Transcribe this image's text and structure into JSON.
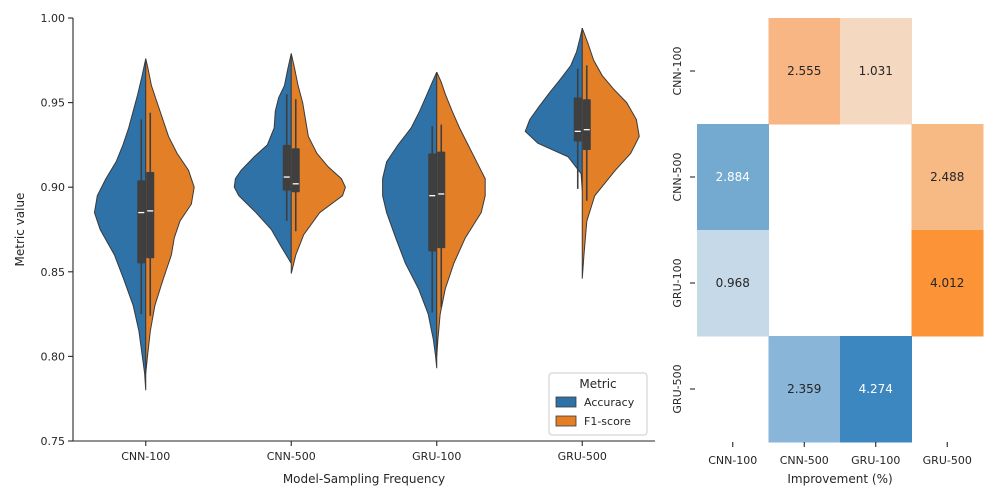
{
  "chart_data": [
    {
      "type": "violin",
      "xlabel": "Model-Sampling Frequency",
      "ylabel": "Metric value",
      "ylim": [
        0.75,
        1.0
      ],
      "yticks": [
        "0.75",
        "0.80",
        "0.85",
        "0.90",
        "0.95",
        "1.00"
      ],
      "categories": [
        "CNN-100",
        "CNN-500",
        "GRU-100",
        "GRU-500"
      ],
      "split": true,
      "legend": {
        "title": "Metric",
        "placement": "lower-right",
        "entries": [
          "Accuracy",
          "F1-score"
        ]
      },
      "series": [
        {
          "name": "Accuracy",
          "color": "#2e72a8",
          "stats": [
            {
              "min": 0.78,
              "q1": 0.855,
              "median": 0.885,
              "q3": 0.904,
              "max": 0.943,
              "lo": 0.825,
              "hi": 0.94,
              "profile": [
                [
                  0.78,
                  0.0
                ],
                [
                  0.79,
                  0.02
                ],
                [
                  0.8,
                  0.06
                ],
                [
                  0.815,
                  0.12
                ],
                [
                  0.83,
                  0.22
                ],
                [
                  0.845,
                  0.38
                ],
                [
                  0.86,
                  0.55
                ],
                [
                  0.875,
                  0.8
                ],
                [
                  0.885,
                  0.9
                ],
                [
                  0.895,
                  0.85
                ],
                [
                  0.905,
                  0.7
                ],
                [
                  0.915,
                  0.52
                ],
                [
                  0.925,
                  0.4
                ],
                [
                  0.935,
                  0.3
                ],
                [
                  0.945,
                  0.22
                ],
                [
                  0.955,
                  0.14
                ],
                [
                  0.965,
                  0.07
                ],
                [
                  0.976,
                  0.0
                ]
              ]
            },
            {
              "min": 0.855,
              "q1": 0.898,
              "median": 0.906,
              "q3": 0.925,
              "max": 0.956,
              "lo": 0.88,
              "hi": 0.955,
              "profile": [
                [
                  0.855,
                  0.0
                ],
                [
                  0.865,
                  0.18
                ],
                [
                  0.875,
                  0.35
                ],
                [
                  0.885,
                  0.62
                ],
                [
                  0.895,
                  0.92
                ],
                [
                  0.9,
                  1.0
                ],
                [
                  0.905,
                  0.98
                ],
                [
                  0.91,
                  0.88
                ],
                [
                  0.918,
                  0.65
                ],
                [
                  0.925,
                  0.42
                ],
                [
                  0.935,
                  0.3
                ],
                [
                  0.945,
                  0.28
                ],
                [
                  0.953,
                  0.22
                ],
                [
                  0.96,
                  0.12
                ],
                [
                  0.97,
                  0.06
                ],
                [
                  0.979,
                  0.0
                ]
              ]
            },
            {
              "min": 0.793,
              "q1": 0.862,
              "median": 0.895,
              "q3": 0.92,
              "max": 0.937,
              "lo": 0.826,
              "hi": 0.936,
              "profile": [
                [
                  0.793,
                  0.0
                ],
                [
                  0.8,
                  0.02
                ],
                [
                  0.81,
                  0.06
                ],
                [
                  0.825,
                  0.15
                ],
                [
                  0.84,
                  0.32
                ],
                [
                  0.855,
                  0.55
                ],
                [
                  0.87,
                  0.72
                ],
                [
                  0.885,
                  0.88
                ],
                [
                  0.895,
                  0.95
                ],
                [
                  0.905,
                  0.95
                ],
                [
                  0.915,
                  0.88
                ],
                [
                  0.925,
                  0.68
                ],
                [
                  0.935,
                  0.45
                ],
                [
                  0.945,
                  0.3
                ],
                [
                  0.955,
                  0.17
                ],
                [
                  0.962,
                  0.08
                ],
                [
                  0.968,
                  0.0
                ]
              ]
            },
            {
              "min": 0.898,
              "q1": 0.927,
              "median": 0.933,
              "q3": 0.953,
              "max": 0.972,
              "lo": 0.899,
              "hi": 0.97,
              "profile": [
                [
                  0.898,
                  0.0
                ],
                [
                  0.908,
                  0.02
                ],
                [
                  0.918,
                  0.25
                ],
                [
                  0.926,
                  0.78
                ],
                [
                  0.933,
                  1.0
                ],
                [
                  0.94,
                  0.92
                ],
                [
                  0.948,
                  0.75
                ],
                [
                  0.956,
                  0.57
                ],
                [
                  0.964,
                  0.38
                ],
                [
                  0.972,
                  0.2
                ],
                [
                  0.98,
                  0.1
                ],
                [
                  0.988,
                  0.04
                ],
                [
                  0.994,
                  0.0
                ]
              ]
            }
          ]
        },
        {
          "name": "F1-score",
          "color": "#e27f27",
          "stats": [
            {
              "min": 0.824,
              "q1": 0.858,
              "median": 0.886,
              "q3": 0.909,
              "max": 0.944,
              "lo": 0.824,
              "hi": 0.944,
              "profile": [
                [
                  0.79,
                  0.0
                ],
                [
                  0.8,
                  0.03
                ],
                [
                  0.815,
                  0.08
                ],
                [
                  0.83,
                  0.16
                ],
                [
                  0.845,
                  0.3
                ],
                [
                  0.86,
                  0.45
                ],
                [
                  0.87,
                  0.5
                ],
                [
                  0.88,
                  0.6
                ],
                [
                  0.89,
                  0.8
                ],
                [
                  0.9,
                  0.85
                ],
                [
                  0.91,
                  0.75
                ],
                [
                  0.92,
                  0.55
                ],
                [
                  0.93,
                  0.4
                ],
                [
                  0.94,
                  0.3
                ],
                [
                  0.95,
                  0.2
                ],
                [
                  0.96,
                  0.1
                ],
                [
                  0.97,
                  0.04
                ],
                [
                  0.976,
                  0.0
                ]
              ]
            },
            {
              "min": 0.874,
              "q1": 0.897,
              "median": 0.902,
              "q3": 0.923,
              "max": 0.952,
              "lo": 0.874,
              "hi": 0.952,
              "profile": [
                [
                  0.849,
                  0.0
                ],
                [
                  0.86,
                  0.08
                ],
                [
                  0.872,
                  0.22
                ],
                [
                  0.885,
                  0.5
                ],
                [
                  0.895,
                  0.9
                ],
                [
                  0.9,
                  0.95
                ],
                [
                  0.905,
                  0.88
                ],
                [
                  0.912,
                  0.65
                ],
                [
                  0.92,
                  0.45
                ],
                [
                  0.93,
                  0.3
                ],
                [
                  0.94,
                  0.25
                ],
                [
                  0.95,
                  0.2
                ],
                [
                  0.96,
                  0.12
                ],
                [
                  0.97,
                  0.06
                ],
                [
                  0.979,
                  0.0
                ]
              ]
            },
            {
              "min": 0.829,
              "q1": 0.864,
              "median": 0.896,
              "q3": 0.921,
              "max": 0.937,
              "lo": 0.829,
              "hi": 0.937,
              "profile": [
                [
                  0.8,
                  0.0
                ],
                [
                  0.81,
                  0.02
                ],
                [
                  0.825,
                  0.06
                ],
                [
                  0.84,
                  0.15
                ],
                [
                  0.855,
                  0.3
                ],
                [
                  0.87,
                  0.5
                ],
                [
                  0.885,
                  0.78
                ],
                [
                  0.895,
                  0.85
                ],
                [
                  0.905,
                  0.85
                ],
                [
                  0.915,
                  0.7
                ],
                [
                  0.925,
                  0.55
                ],
                [
                  0.935,
                  0.4
                ],
                [
                  0.945,
                  0.27
                ],
                [
                  0.955,
                  0.15
                ],
                [
                  0.962,
                  0.08
                ],
                [
                  0.968,
                  0.0
                ]
              ]
            },
            {
              "min": 0.892,
              "q1": 0.922,
              "median": 0.934,
              "q3": 0.952,
              "max": 0.972,
              "lo": 0.892,
              "hi": 0.972,
              "profile": [
                [
                  0.846,
                  0.0
                ],
                [
                  0.86,
                  0.03
                ],
                [
                  0.88,
                  0.08
                ],
                [
                  0.895,
                  0.22
                ],
                [
                  0.91,
                  0.58
                ],
                [
                  0.92,
                  0.85
                ],
                [
                  0.93,
                  1.0
                ],
                [
                  0.94,
                  0.95
                ],
                [
                  0.95,
                  0.78
                ],
                [
                  0.958,
                  0.55
                ],
                [
                  0.966,
                  0.35
                ],
                [
                  0.975,
                  0.2
                ],
                [
                  0.985,
                  0.1
                ],
                [
                  0.994,
                  0.0
                ]
              ]
            }
          ]
        }
      ]
    },
    {
      "type": "heatmap",
      "xlabel": "Improvement (%)",
      "ylabel": "",
      "xticks": [
        "CNN-100",
        "CNN-500",
        "GRU-100",
        "GRU-500"
      ],
      "yticks": [
        "CNN-100",
        "CNN-500",
        "GRU-100",
        "GRU-500"
      ],
      "values": [
        [
          null,
          2.555,
          1.031,
          null
        ],
        [
          2.884,
          null,
          null,
          2.488
        ],
        [
          0.968,
          null,
          null,
          4.012
        ],
        [
          null,
          2.359,
          4.274,
          null
        ]
      ],
      "labels": [
        [
          "",
          "2.555",
          "1.031",
          ""
        ],
        [
          "2.884",
          "",
          "",
          "2.488"
        ],
        [
          "0.968",
          "",
          "",
          "4.012"
        ],
        [
          "",
          "2.359",
          "4.274",
          ""
        ]
      ],
      "colors": [
        [
          null,
          "#f7b683",
          "#f4d8c0",
          null
        ],
        [
          "#74a9d0",
          null,
          null,
          "#f8ba85"
        ],
        [
          "#c6d9e8",
          null,
          null,
          "#fc9336"
        ],
        [
          null,
          "#89b5d8",
          "#3d87c1",
          null
        ]
      ],
      "text_colors": [
        [
          null,
          "#262626",
          "#262626",
          null
        ],
        [
          "#ffffff",
          null,
          null,
          "#262626"
        ],
        [
          "#262626",
          null,
          null,
          "#262626"
        ],
        [
          null,
          "#262626",
          "#ffffff",
          null
        ]
      ]
    }
  ]
}
